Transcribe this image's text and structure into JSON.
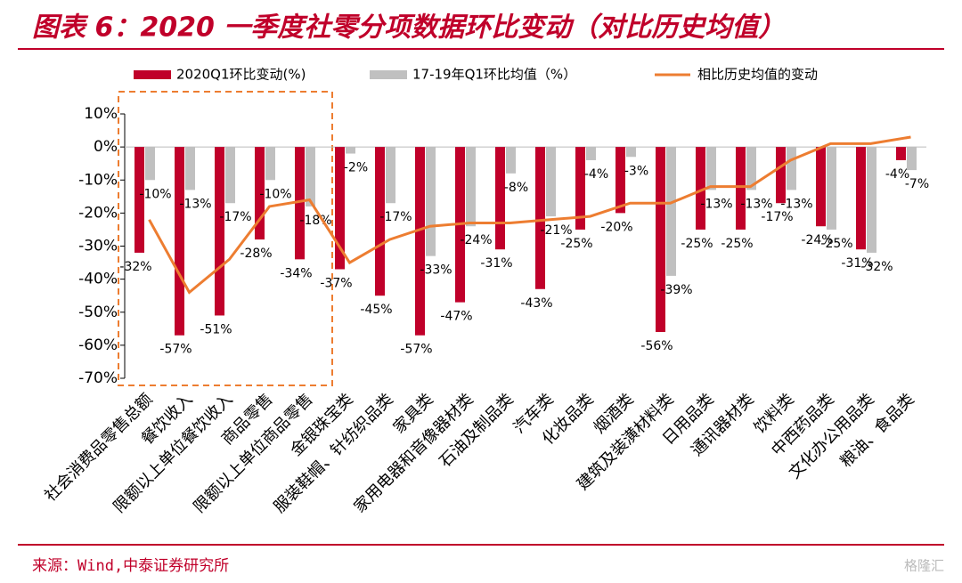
{
  "chart_data": {
    "type": "bar_line",
    "title": "图表 6：2020 一季度社零分项数据环比变动（对比历史均值）",
    "source": "来源：Wind,中泰证券研究所",
    "watermark": "格隆汇",
    "categories": [
      "社会消费品零售总额",
      "餐饮收入",
      "限额以上单位餐饮收入",
      "商品零售",
      "限额以上单位商品零售",
      "金银珠宝类",
      "服装鞋帽、针纺织品类",
      "家具类",
      "家用电器和音像器材类",
      "石油及制品类",
      "汽车类",
      "化妆品类",
      "烟酒类",
      "建筑及装潢材料类",
      "日用品类",
      "通讯器材类",
      "饮料类",
      "中西药品类",
      "文化办公用品类",
      "粮油、食品类"
    ],
    "series": [
      {
        "name": "2020Q1环比变动(%)",
        "type": "bar",
        "color": "#c0002a",
        "values": [
          -32,
          -57,
          -51,
          -28,
          -34,
          -37,
          -45,
          -57,
          -47,
          -31,
          -43,
          -25,
          -20,
          -56,
          -25,
          -25,
          -17,
          -24,
          -31,
          -4
        ],
        "value_labels": [
          "-32%",
          "-57%",
          "-51%",
          "-28%",
          "-34%",
          "-37%",
          "-45%",
          "-57%",
          "-47%",
          "-31%",
          "-43%",
          "-25%",
          "-20%",
          "-56%",
          "-25%",
          "-25%",
          "-17%",
          "-24%",
          "-31%",
          "-4%"
        ]
      },
      {
        "name": "17-19年Q1环比均值（%）",
        "type": "bar",
        "color": "#c0c0c0",
        "values": [
          -10,
          -13,
          -17,
          -10,
          -18,
          -2,
          -17,
          -33,
          -24,
          -8,
          -21,
          -4,
          -3,
          -39,
          -13,
          -13,
          -13,
          -25,
          -32,
          -7
        ],
        "value_labels": [
          "-10%",
          "-13%",
          "-17%",
          "-10%",
          "-18%",
          "-2%",
          "-17%",
          "-33%",
          "-24%",
          "-8%",
          "-21%",
          "-4%",
          "-3%",
          "-39%",
          "-13%",
          "-13%",
          "-13%",
          "-25%",
          "-32%",
          "-7%"
        ]
      },
      {
        "name": "相比历史均值的变动",
        "type": "line",
        "color": "#ed7d31",
        "values": [
          -22,
          -44,
          -34,
          -18,
          -16,
          -35,
          -28,
          -24,
          -23,
          -23,
          -22,
          -21,
          -17,
          -17,
          -12,
          -12,
          -4,
          1,
          1,
          3
        ]
      }
    ],
    "ylim": [
      -70,
      10
    ],
    "yticks": [
      {
        "value": -70,
        "label": "-70%"
      },
      {
        "value": -60,
        "label": "-60%"
      },
      {
        "value": -50,
        "label": "-50%"
      },
      {
        "value": -40,
        "label": "-40%"
      },
      {
        "value": -30,
        "label": "-30%"
      },
      {
        "value": -20,
        "label": "-20%"
      },
      {
        "value": -10,
        "label": "-10%"
      },
      {
        "value": 0,
        "label": "0%"
      },
      {
        "value": 10,
        "label": "10%"
      }
    ],
    "grid": false,
    "legend": "top"
  }
}
